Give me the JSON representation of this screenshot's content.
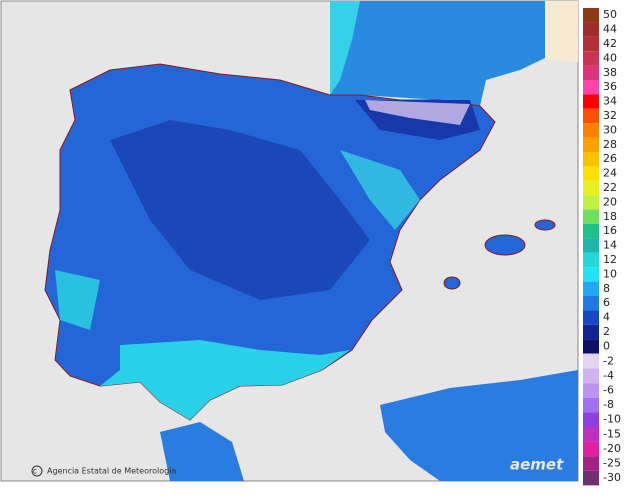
{
  "map": {
    "credit": "Agencia Estatal de Meteorología",
    "brand": "aemet",
    "legend": {
      "upper": [
        {
          "value": 50,
          "color": "#8b3a14"
        },
        {
          "value": 44,
          "color": "#a02c28"
        },
        {
          "value": 42,
          "color": "#b43036"
        },
        {
          "value": 40,
          "color": "#c83454"
        },
        {
          "value": 38,
          "color": "#dc3478"
        },
        {
          "value": 36,
          "color": "#ff44a8"
        },
        {
          "value": 34,
          "color": "#ff0000"
        },
        {
          "value": 32,
          "color": "#ff5000"
        },
        {
          "value": 30,
          "color": "#ff8000"
        },
        {
          "value": 28,
          "color": "#ffa000"
        },
        {
          "value": 26,
          "color": "#ffc000"
        },
        {
          "value": 24,
          "color": "#ffe000"
        },
        {
          "value": 22,
          "color": "#e8f020"
        },
        {
          "value": 20,
          "color": "#c0f040"
        },
        {
          "value": 18,
          "color": "#70dc60"
        },
        {
          "value": 16,
          "color": "#20c08c"
        },
        {
          "value": 14,
          "color": "#20b4b0"
        },
        {
          "value": 12,
          "color": "#20d8d8"
        },
        {
          "value": 10,
          "color": "#20e4f4"
        },
        {
          "value": 8,
          "color": "#20a8f4"
        },
        {
          "value": 6,
          "color": "#2478e4"
        },
        {
          "value": 4,
          "color": "#1448c4"
        },
        {
          "value": 2,
          "color": "#102494"
        },
        {
          "value": 0,
          "color": "#0c1064"
        }
      ],
      "lower": [
        {
          "value": -2,
          "color": "#e4d4f4"
        },
        {
          "value": -4,
          "color": "#d0b4f0"
        },
        {
          "value": -6,
          "color": "#bc94f0"
        },
        {
          "value": -8,
          "color": "#a070f0"
        },
        {
          "value": -10,
          "color": "#8c40e0"
        },
        {
          "value": -15,
          "color": "#c030c0"
        },
        {
          "value": -20,
          "color": "#e020a0"
        },
        {
          "value": -25,
          "color": "#a42084"
        },
        {
          "value": -30,
          "color": "#703070"
        }
      ]
    }
  }
}
